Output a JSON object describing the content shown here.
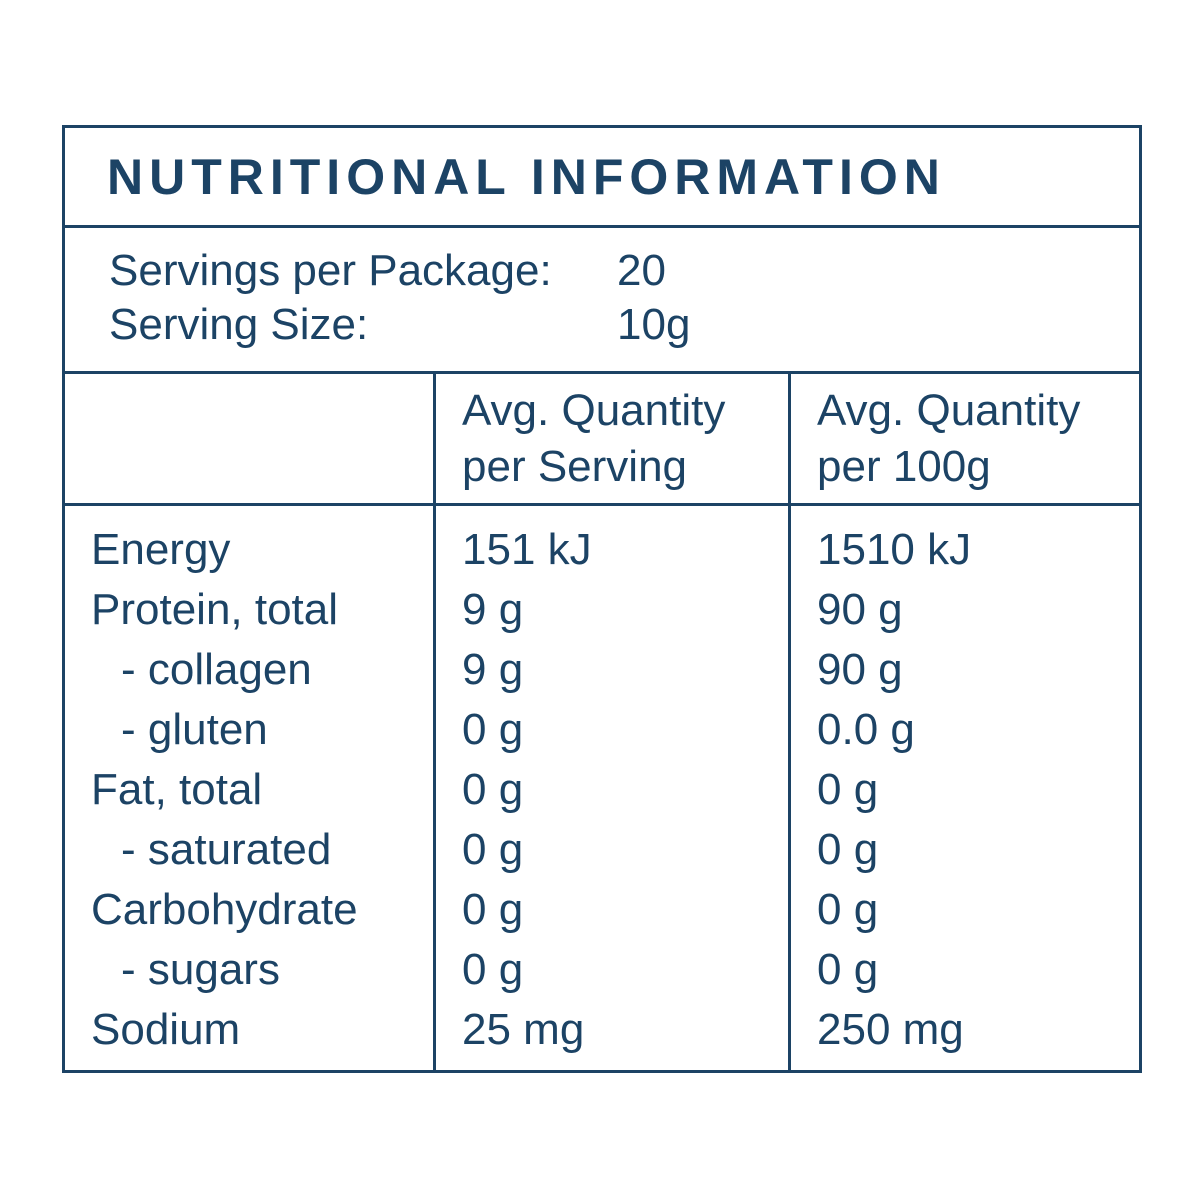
{
  "colors": {
    "navy": "#1c4365",
    "background": "#ffffff"
  },
  "header": {
    "title": "NUTRITIONAL INFORMATION"
  },
  "serving_info": [
    {
      "label": "Servings per Package:",
      "value": "20"
    },
    {
      "label": "Serving Size:",
      "value": "10g"
    }
  ],
  "table": {
    "column_headers": [
      {
        "line1": "Avg. Quantity",
        "line2": "per Serving"
      },
      {
        "line1": "Avg. Quantity",
        "line2": "per 100g"
      }
    ],
    "rows": [
      {
        "label": "Energy",
        "per_serving": "151 kJ",
        "per_100g": "1510 kJ"
      },
      {
        "label": "Protein, total",
        "per_serving": "9 g",
        "per_100g": "90 g"
      },
      {
        "label": "- collagen",
        "per_serving": "9 g",
        "per_100g": "90 g"
      },
      {
        "label": "- gluten",
        "per_serving": "0 g",
        "per_100g": "0.0 g"
      },
      {
        "label": "Fat, total",
        "per_serving": "0 g",
        "per_100g": "0 g"
      },
      {
        "label": "- saturated",
        "per_serving": "0 g",
        "per_100g": "0 g"
      },
      {
        "label": "Carbohydrate",
        "per_serving": "0 g",
        "per_100g": "0 g"
      },
      {
        "label": "- sugars",
        "per_serving": "0 g",
        "per_100g": "0 g"
      },
      {
        "label": "Sodium",
        "per_serving": "25 mg",
        "per_100g": "250 mg"
      }
    ]
  }
}
